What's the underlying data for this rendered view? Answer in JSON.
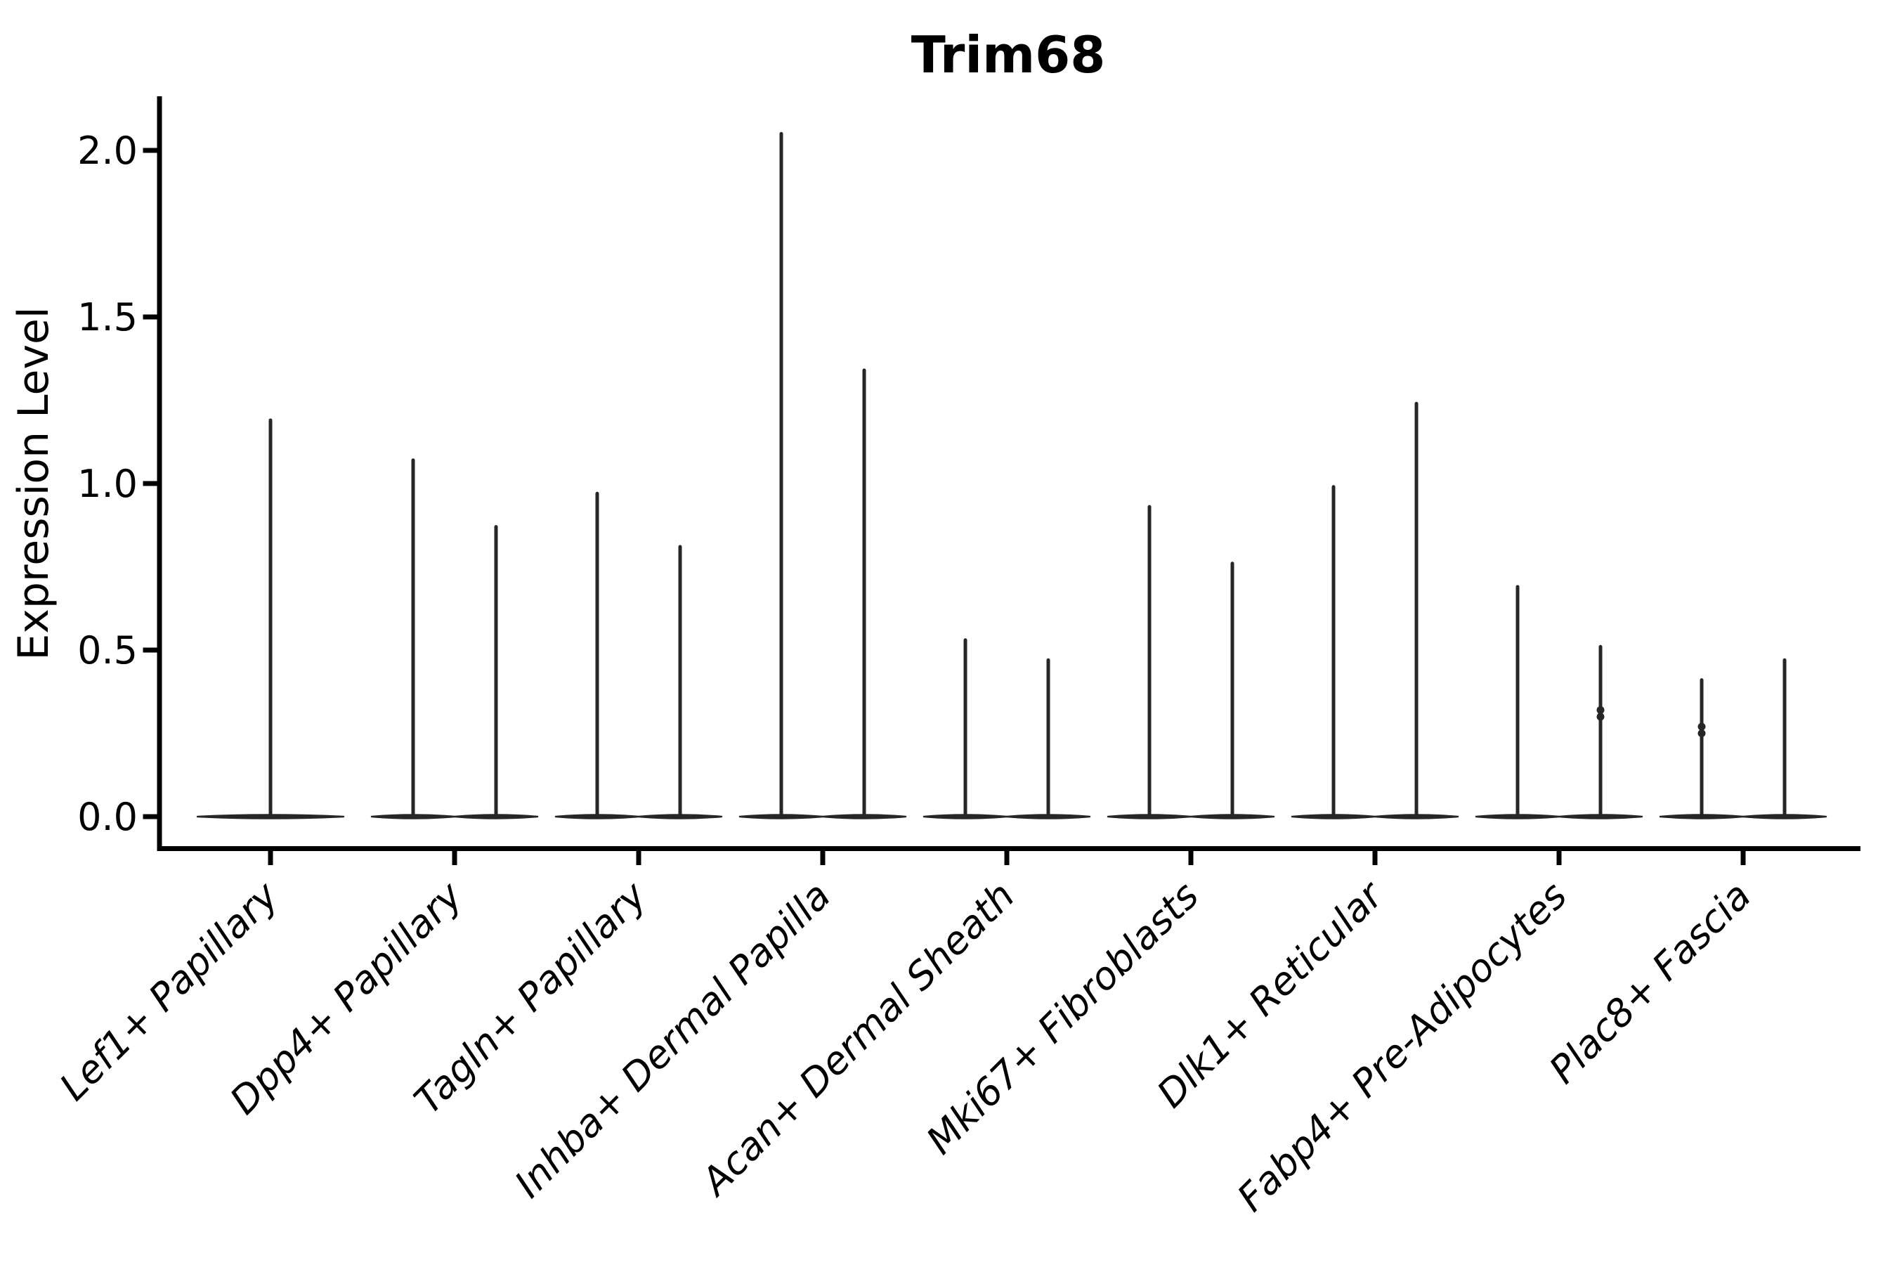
{
  "chart_data": {
    "type": "violin",
    "title": "Trim68",
    "ylabel": "Expression Level",
    "xlabel": "",
    "grid": false,
    "legend_position": "none",
    "y_ticks": [
      0.0,
      0.5,
      1.0,
      1.5,
      2.0
    ],
    "y_tick_labels": [
      "0.0",
      "0.5",
      "1.0",
      "1.5",
      "2.0"
    ],
    "ylim": [
      -0.1,
      2.15
    ],
    "categories": [
      "Lef1+ Papillary",
      "Dpp4+ Papillary",
      "Tagln+ Papillary",
      "Inhba+ Dermal Papilla",
      "Acan+ Dermal Sheath",
      "Mki67+ Fibroblasts",
      "Dlk1+ Reticular",
      "Fabp4+ Pre-Adipocytes",
      "Plac8+ Fascia"
    ],
    "violin_maxima": [
      [
        1.19
      ],
      [
        1.07,
        0.87
      ],
      [
        0.97,
        0.81
      ],
      [
        2.05,
        1.34
      ],
      [
        0.53,
        0.47
      ],
      [
        0.93,
        0.76
      ],
      [
        0.99,
        1.24
      ],
      [
        0.69,
        0.51
      ],
      [
        0.41,
        0.47
      ]
    ],
    "jitter_points": [
      {
        "category_index": 7,
        "violin": 2,
        "values": [
          0.3,
          0.32
        ]
      },
      {
        "category_index": 8,
        "violin": 1,
        "values": [
          0.25,
          0.27
        ]
      }
    ],
    "violin_color": "#262626",
    "axis_color": "#000000"
  }
}
